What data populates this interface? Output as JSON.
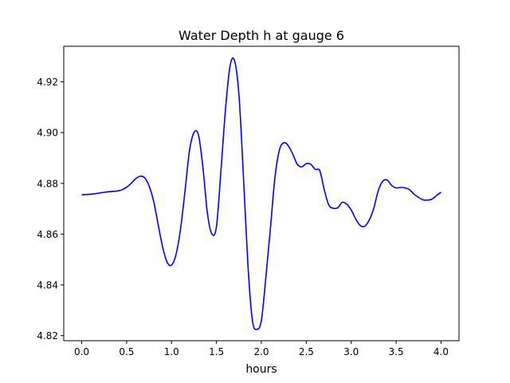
{
  "chart_data": {
    "type": "line",
    "title": "Water Depth h at gauge 6",
    "xlabel": "hours",
    "ylabel": "",
    "xlim": [
      -0.2,
      4.2
    ],
    "ylim": [
      4.818,
      4.934
    ],
    "x_ticks": [
      0.0,
      0.5,
      1.0,
      1.5,
      2.0,
      2.5,
      3.0,
      3.5,
      4.0
    ],
    "x_tick_labels": [
      "0.0",
      "0.5",
      "1.0",
      "1.5",
      "2.0",
      "2.5",
      "3.0",
      "3.5",
      "4.0"
    ],
    "y_ticks": [
      4.82,
      4.84,
      4.86,
      4.88,
      4.9,
      4.92
    ],
    "y_tick_labels": [
      "4.82",
      "4.84",
      "4.86",
      "4.88",
      "4.90",
      "4.92"
    ],
    "grid": false,
    "series": [
      {
        "color": "#0000ff",
        "x": [
          0.0,
          0.1,
          0.2,
          0.3,
          0.4,
          0.45,
          0.5,
          0.55,
          0.6,
          0.65,
          0.7,
          0.75,
          0.8,
          0.85,
          0.9,
          0.95,
          1.0,
          1.05,
          1.1,
          1.15,
          1.2,
          1.25,
          1.3,
          1.35,
          1.4,
          1.45,
          1.5,
          1.55,
          1.6,
          1.65,
          1.7,
          1.75,
          1.8,
          1.85,
          1.9,
          1.95,
          2.0,
          2.05,
          2.1,
          2.15,
          2.2,
          2.25,
          2.3,
          2.35,
          2.4,
          2.45,
          2.5,
          2.55,
          2.6,
          2.65,
          2.7,
          2.75,
          2.8,
          2.85,
          2.9,
          2.95,
          3.0,
          3.05,
          3.1,
          3.15,
          3.2,
          3.25,
          3.3,
          3.35,
          3.4,
          3.45,
          3.5,
          3.55,
          3.6,
          3.65,
          3.7,
          3.75,
          3.8,
          3.85,
          3.9,
          3.95,
          4.0
        ],
        "y": [
          4.8755,
          4.8757,
          4.8762,
          4.8767,
          4.877,
          4.8775,
          4.8785,
          4.88,
          4.8818,
          4.8828,
          4.8822,
          4.879,
          4.873,
          4.864,
          4.855,
          4.849,
          4.8478,
          4.852,
          4.862,
          4.877,
          4.893,
          4.9,
          4.899,
          4.886,
          4.868,
          4.86,
          4.863,
          4.885,
          4.909,
          4.926,
          4.9285,
          4.915,
          4.883,
          4.848,
          4.826,
          4.8225,
          4.826,
          4.843,
          4.862,
          4.882,
          4.893,
          4.896,
          4.8948,
          4.8915,
          4.8875,
          4.8865,
          4.8878,
          4.8875,
          4.8855,
          4.885,
          4.8775,
          4.8715,
          4.8702,
          4.8704,
          4.8725,
          4.8718,
          4.8695,
          4.866,
          4.8634,
          4.8631,
          4.8655,
          4.87,
          4.877,
          4.8808,
          4.8813,
          4.8792,
          4.8782,
          4.8784,
          4.8782,
          4.8775,
          4.8757,
          4.8745,
          4.8735,
          4.8734,
          4.8738,
          4.8752,
          4.8765
        ]
      }
    ]
  }
}
